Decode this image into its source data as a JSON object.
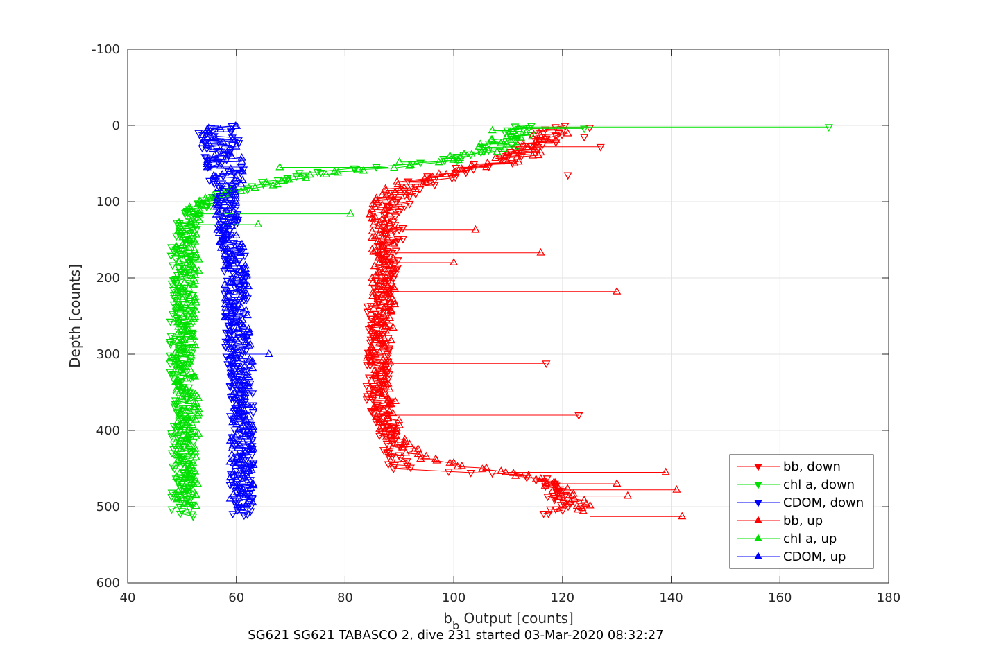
{
  "chart_data": {
    "type": "scatter",
    "caption": "SG621 SG621 TABASCO 2, dive 231 started 03-Mar-2020 08:32:27",
    "xlabel_main": "b",
    "xlabel_sub": "b",
    "xlabel_rest": " Output [counts]",
    "ylabel": "Depth [counts]",
    "xlim": [
      40,
      180
    ],
    "ylim": [
      -100,
      600
    ],
    "y_reversed": true,
    "grid": true,
    "legend_position": "bottom-right",
    "xticks": [
      40,
      60,
      80,
      100,
      120,
      140,
      160,
      180
    ],
    "xtick_labels": [
      "40",
      "60",
      "80",
      "100",
      "120",
      "140",
      "160",
      "180"
    ],
    "yticks": [
      -100,
      0,
      100,
      200,
      300,
      400,
      500,
      600
    ],
    "ytick_labels": [
      "-100",
      "0",
      "100",
      "200",
      "300",
      "400",
      "500",
      "600"
    ],
    "series": [
      {
        "name": "bb, down",
        "color": "#ff0000",
        "marker": "triangle-down",
        "profile": [
          [
            0,
            117
          ],
          [
            10,
            119
          ],
          [
            20,
            116
          ],
          [
            30,
            114
          ],
          [
            40,
            111
          ],
          [
            50,
            107
          ],
          [
            60,
            101
          ],
          [
            70,
            96
          ],
          [
            80,
            93
          ],
          [
            90,
            91
          ],
          [
            100,
            90
          ],
          [
            120,
            89
          ],
          [
            140,
            89
          ],
          [
            160,
            88
          ],
          [
            180,
            88
          ],
          [
            200,
            87
          ],
          [
            250,
            86
          ],
          [
            300,
            86
          ],
          [
            350,
            86
          ],
          [
            400,
            87
          ],
          [
            430,
            89
          ],
          [
            450,
            90
          ],
          [
            460,
            115
          ],
          [
            480,
            118
          ],
          [
            500,
            120
          ],
          [
            510,
            118
          ]
        ],
        "outliers": [
          [
            3,
            125
          ],
          [
            15,
            124
          ],
          [
            28,
            127
          ],
          [
            65,
            121
          ],
          [
            312,
            117
          ],
          [
            380,
            123
          ]
        ]
      },
      {
        "name": "chl a, down",
        "color": "#00e000",
        "marker": "triangle-down",
        "profile": [
          [
            0,
            111
          ],
          [
            10,
            111
          ],
          [
            20,
            110
          ],
          [
            30,
            108
          ],
          [
            40,
            103
          ],
          [
            50,
            95
          ],
          [
            55,
            85
          ],
          [
            60,
            75
          ],
          [
            70,
            68
          ],
          [
            80,
            62
          ],
          [
            90,
            57
          ],
          [
            100,
            54
          ],
          [
            115,
            52
          ],
          [
            130,
            51
          ],
          [
            150,
            50
          ],
          [
            200,
            50
          ],
          [
            250,
            50
          ],
          [
            300,
            50
          ],
          [
            350,
            50
          ],
          [
            400,
            50
          ],
          [
            450,
            50
          ],
          [
            500,
            50
          ],
          [
            512,
            50
          ]
        ],
        "outliers": [
          [
            2,
            169
          ],
          [
            4,
            124
          ]
        ]
      },
      {
        "name": "CDOM, down",
        "color": "#0000ff",
        "marker": "triangle-down",
        "profile": [
          [
            0,
            56
          ],
          [
            20,
            57
          ],
          [
            40,
            57
          ],
          [
            60,
            58
          ],
          [
            80,
            58
          ],
          [
            100,
            58
          ],
          [
            150,
            59
          ],
          [
            200,
            60
          ],
          [
            250,
            60
          ],
          [
            300,
            60
          ],
          [
            350,
            61
          ],
          [
            400,
            61
          ],
          [
            450,
            61
          ],
          [
            500,
            61
          ],
          [
            512,
            61
          ]
        ],
        "outliers": []
      },
      {
        "name": "bb, up",
        "color": "#ff0000",
        "marker": "triangle-up",
        "profile": [
          [
            10,
            118
          ],
          [
            20,
            117
          ],
          [
            30,
            115
          ],
          [
            40,
            112
          ],
          [
            50,
            108
          ],
          [
            60,
            100
          ],
          [
            70,
            94
          ],
          [
            80,
            90
          ],
          [
            90,
            88
          ],
          [
            100,
            87
          ],
          [
            120,
            86
          ],
          [
            150,
            87
          ],
          [
            180,
            87
          ],
          [
            200,
            87
          ],
          [
            250,
            87
          ],
          [
            300,
            86
          ],
          [
            350,
            87
          ],
          [
            400,
            88
          ],
          [
            430,
            92
          ],
          [
            445,
            100
          ],
          [
            455,
            110
          ],
          [
            470,
            118
          ],
          [
            490,
            122
          ],
          [
            505,
            125
          ]
        ],
        "outliers": [
          [
            218,
            130
          ],
          [
            137,
            104
          ],
          [
            167,
            116
          ],
          [
            180,
            100
          ],
          [
            455,
            139
          ],
          [
            478,
            141
          ],
          [
            513,
            142
          ],
          [
            486,
            132
          ],
          [
            470,
            130
          ]
        ]
      },
      {
        "name": "chl a, up",
        "color": "#00e000",
        "marker": "triangle-up",
        "profile": [
          [
            5,
            110
          ],
          [
            15,
            110
          ],
          [
            25,
            108
          ],
          [
            35,
            105
          ],
          [
            45,
            98
          ],
          [
            55,
            88
          ],
          [
            60,
            80
          ],
          [
            70,
            70
          ],
          [
            80,
            63
          ],
          [
            90,
            58
          ],
          [
            100,
            55
          ],
          [
            115,
            52
          ],
          [
            130,
            51
          ],
          [
            150,
            51
          ],
          [
            200,
            51
          ],
          [
            250,
            51
          ],
          [
            300,
            50
          ],
          [
            350,
            51
          ],
          [
            400,
            51
          ],
          [
            450,
            51
          ],
          [
            500,
            51
          ]
        ],
        "outliers": [
          [
            116,
            81
          ],
          [
            130,
            64
          ],
          [
            55,
            68
          ],
          [
            48,
            90
          ],
          [
            5,
            112
          ]
        ]
      },
      {
        "name": "CDOM, up",
        "color": "#0000ff",
        "marker": "triangle-up",
        "profile": [
          [
            0,
            57
          ],
          [
            20,
            57
          ],
          [
            40,
            58
          ],
          [
            60,
            58
          ],
          [
            80,
            58
          ],
          [
            100,
            58
          ],
          [
            150,
            59
          ],
          [
            200,
            60
          ],
          [
            250,
            60
          ],
          [
            300,
            61
          ],
          [
            350,
            61
          ],
          [
            400,
            61
          ],
          [
            450,
            61
          ],
          [
            500,
            61
          ]
        ],
        "outliers": [
          [
            300,
            66
          ]
        ]
      }
    ]
  }
}
